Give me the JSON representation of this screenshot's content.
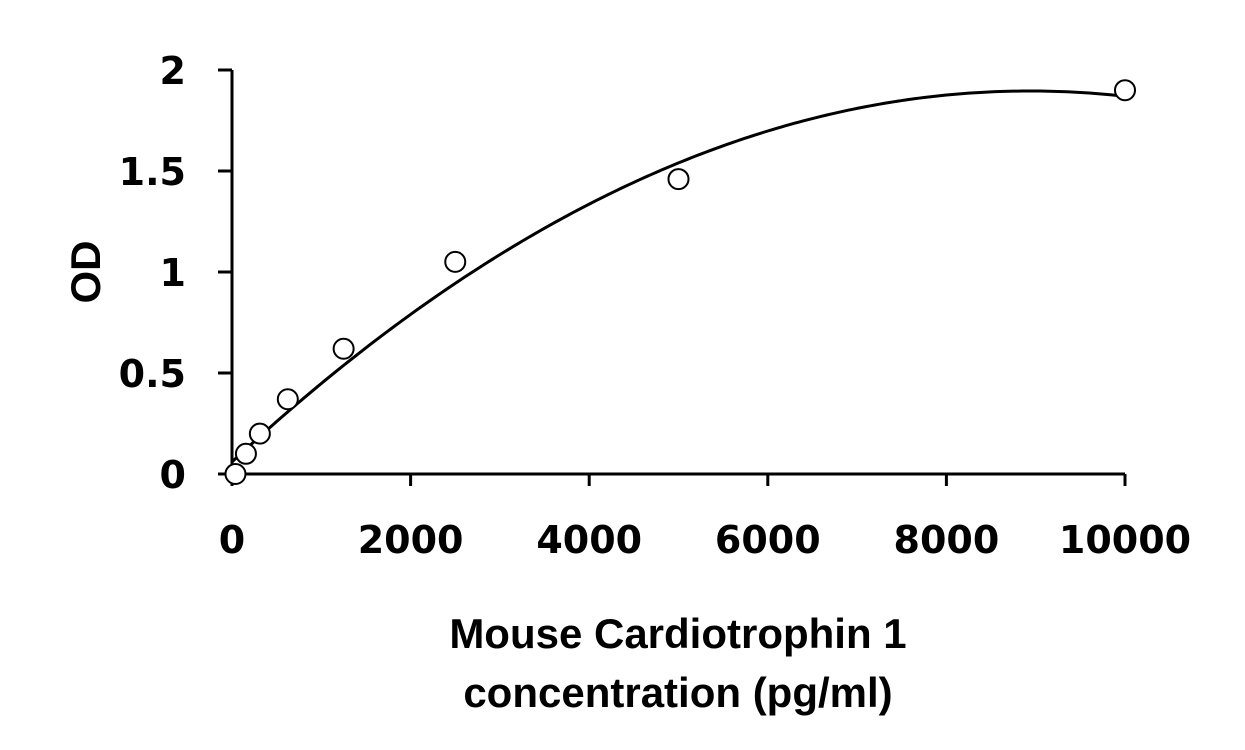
{
  "chart_data": {
    "type": "scatter",
    "title": "",
    "xlabel_lines": [
      "Mouse Cardiotrophin 1",
      "concentration (pg/ml)"
    ],
    "ylabel": "OD",
    "xlim": [
      0,
      10000
    ],
    "ylim": [
      0,
      2
    ],
    "x_ticks": [
      0,
      2000,
      4000,
      6000,
      8000,
      10000
    ],
    "y_ticks": [
      0,
      0.5,
      1,
      1.5,
      2
    ],
    "grid": false,
    "legend": "none",
    "points": [
      {
        "x": 39,
        "y": 0.0
      },
      {
        "x": 156,
        "y": 0.1
      },
      {
        "x": 312,
        "y": 0.2
      },
      {
        "x": 625,
        "y": 0.37
      },
      {
        "x": 1250,
        "y": 0.62
      },
      {
        "x": 2500,
        "y": 1.05
      },
      {
        "x": 5000,
        "y": 1.46
      },
      {
        "x": 10000,
        "y": 1.9
      }
    ],
    "fit_curve": {
      "type": "polynomial",
      "coefficients": [
        0.06,
        0.000411,
        -2.3e-08
      ],
      "x_range": [
        0,
        10000
      ]
    }
  }
}
